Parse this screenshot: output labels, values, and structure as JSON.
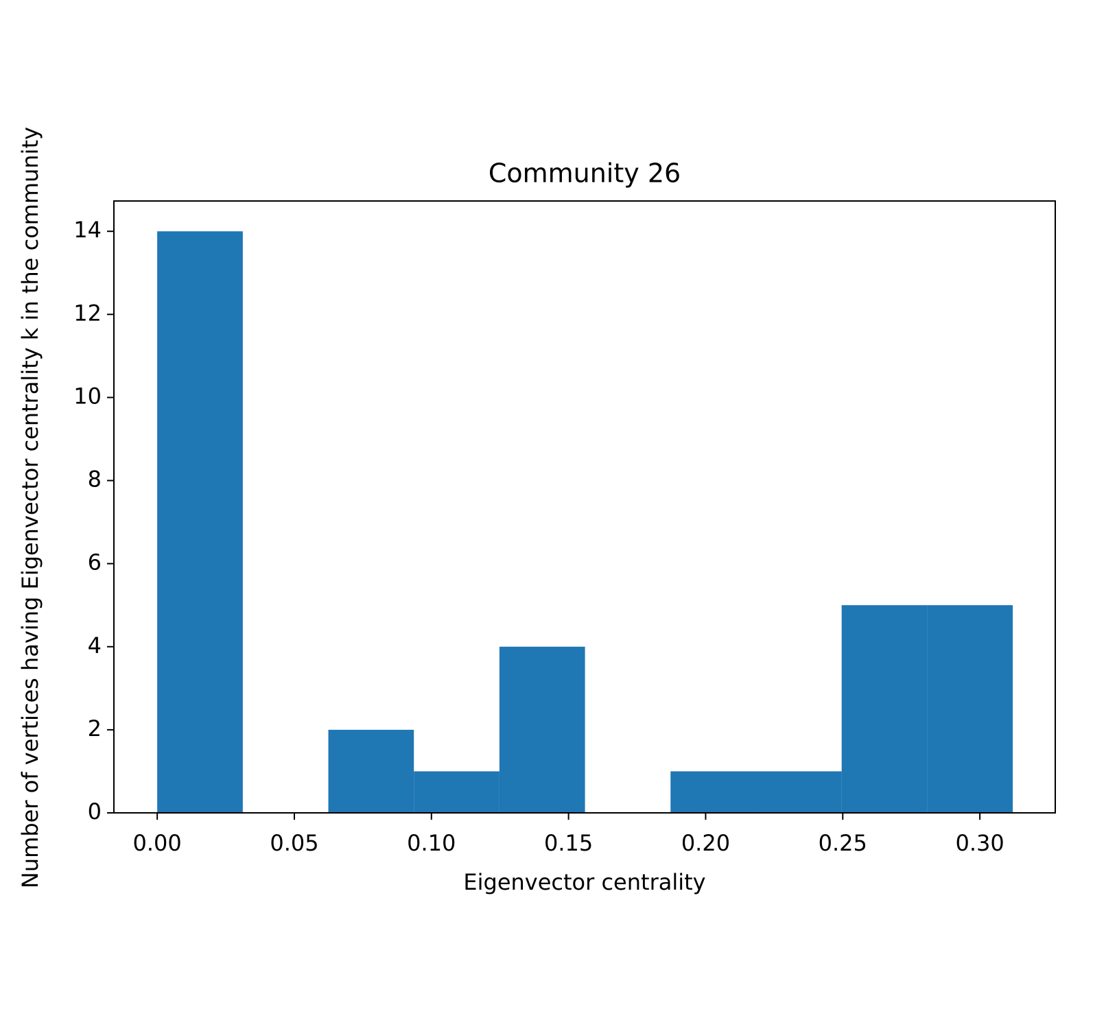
{
  "chart_data": {
    "type": "histogram",
    "title": "Community 26",
    "xlabel": "Eigenvector centrality",
    "ylabel": "Number of vertices having Eigenvector centrality k in the community",
    "bins": [
      0,
      0.0312,
      0.0624,
      0.0936,
      0.1248,
      0.156,
      0.1872,
      0.2184,
      0.2496,
      0.2808,
      0.312
    ],
    "values": [
      14,
      0,
      2,
      1,
      4,
      0,
      1,
      1,
      5,
      5
    ],
    "color": "#1f77b4",
    "xlim": [
      -0.0158,
      0.3275
    ],
    "xticks": [
      {
        "value": 0,
        "label": "0.00"
      },
      {
        "value": 0.05,
        "label": "0.05"
      },
      {
        "value": 0.1,
        "label": "0.10"
      },
      {
        "value": 0.15,
        "label": "0.15"
      },
      {
        "value": 0.2,
        "label": "0.20"
      },
      {
        "value": 0.25,
        "label": "0.25"
      },
      {
        "value": 0.3,
        "label": "0.30"
      }
    ],
    "ylim": [
      0,
      14.73
    ],
    "yticks": [
      0,
      2,
      4,
      6,
      8,
      10,
      12,
      14
    ],
    "grid": false
  }
}
